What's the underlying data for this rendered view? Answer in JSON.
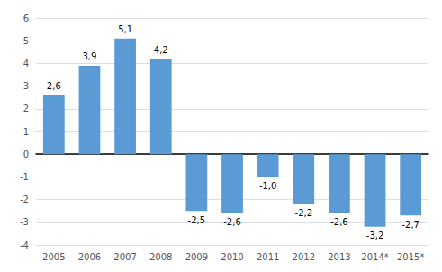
{
  "chart_data": {
    "type": "bar",
    "categories": [
      "2005",
      "2006",
      "2007",
      "2008",
      "2009",
      "2010",
      "2011",
      "2012",
      "2013",
      "2014*",
      "2015*"
    ],
    "values": [
      2.6,
      3.9,
      5.1,
      4.2,
      -2.5,
      -2.6,
      -1.0,
      -2.2,
      -2.6,
      -3.2,
      -2.7
    ],
    "value_labels": [
      "2,6",
      "3,9",
      "5,1",
      "4,2",
      "-2,5",
      "-2,6",
      "-1,0",
      "-2,2",
      "-2,6",
      "-3,2",
      "-2,7"
    ],
    "color": "#5B9BD5",
    "ylim": [
      -4,
      6
    ],
    "yticks": [
      -4,
      -3,
      -2,
      -1,
      0,
      1,
      2,
      3,
      4,
      5,
      6
    ],
    "grid": true,
    "data_labels": true
  }
}
